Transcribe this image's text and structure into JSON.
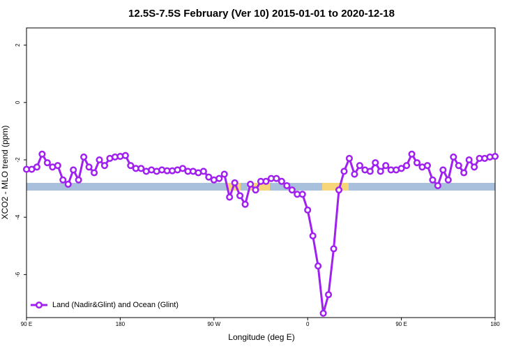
{
  "chart_data": {
    "type": "line",
    "title": "12.5S-7.5S February (Ver 10)   2015-01-01 to 2020-12-18",
    "x_label": "Longitude (deg E)",
    "y_label": "XCO2 - MLO trend (ppm)",
    "x": [
      90,
      95,
      100,
      105,
      110,
      115,
      120,
      125,
      130,
      135,
      140,
      145,
      150,
      155,
      160,
      165,
      170,
      175,
      180,
      185,
      190,
      195,
      200,
      205,
      210,
      215,
      220,
      225,
      230,
      235,
      240,
      245,
      250,
      255,
      260,
      265,
      270,
      275,
      280,
      285,
      290,
      295,
      300,
      305,
      310,
      315,
      320,
      325,
      330,
      335,
      340,
      345,
      350,
      355,
      360,
      365,
      370,
      375,
      380,
      385,
      390,
      395,
      400,
      405,
      410,
      415,
      420,
      425,
      430,
      435,
      440,
      445,
      450,
      455,
      460,
      465,
      470,
      475,
      480,
      485,
      490,
      495,
      500,
      505,
      510,
      515,
      520,
      525,
      530,
      535,
      540
    ],
    "series": [
      {
        "name": "Land (Nadir&Glint) and Ocean (Glint)",
        "color": "#a020f0",
        "values": [
          -2.33,
          -2.33,
          -2.25,
          -1.8,
          -2.1,
          -2.25,
          -2.2,
          -2.7,
          -2.85,
          -2.35,
          -2.7,
          -1.9,
          -2.25,
          -2.45,
          -2.0,
          -2.2,
          -1.95,
          -1.9,
          -1.88,
          -1.85,
          -2.2,
          -2.3,
          -2.3,
          -2.4,
          -2.35,
          -2.4,
          -2.35,
          -2.38,
          -2.38,
          -2.35,
          -2.3,
          -2.4,
          -2.4,
          -2.45,
          -2.4,
          -2.6,
          -2.7,
          -2.65,
          -2.5,
          -3.3,
          -2.8,
          -3.25,
          -3.55,
          -2.85,
          -3.05,
          -2.75,
          -2.75,
          -2.65,
          -2.65,
          -2.75,
          -2.9,
          -3.05,
          -3.2,
          -3.2,
          -3.75,
          -4.65,
          -5.7,
          -7.35,
          -6.7,
          -5.1,
          -3.05,
          -2.4,
          -1.95,
          -2.5,
          -2.2,
          -2.35,
          -2.4,
          -2.1,
          -2.4,
          -2.2,
          -2.35,
          -2.35,
          -2.3,
          -2.2,
          -1.8,
          -2.1,
          -2.25,
          -2.2,
          -2.7,
          -2.9,
          -2.35,
          -2.7,
          -1.9,
          -2.2,
          -2.45,
          -2.0,
          -2.25,
          -1.95,
          -1.95,
          -1.9,
          -1.88
        ]
      }
    ],
    "xlim": [
      90,
      540
    ],
    "xticks": [
      {
        "value": 90,
        "label": "90 E"
      },
      180,
      {
        "value": 270,
        "label": "90 W"
      },
      {
        "value": 360,
        "label": "0"
      },
      {
        "value": 450,
        "label": "90 E"
      },
      {
        "value": 540,
        "label": "180"
      }
    ],
    "ylim": [
      -7.5,
      2.6
    ],
    "yticks": [
      2,
      0,
      -2,
      -4,
      -6
    ],
    "legend": "bottom-left"
  }
}
